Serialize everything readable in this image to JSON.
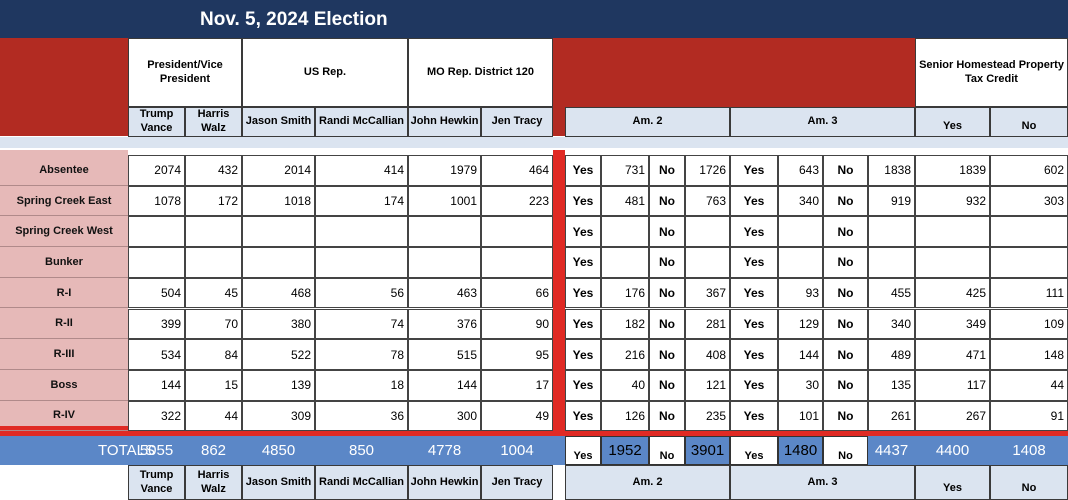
{
  "title": "Nov. 5, 2024 Election",
  "headers": {
    "president": "President/Vice President",
    "us_rep": "US Rep.",
    "mo_rep": "MO Rep. District 120",
    "senior": "Senior Homestead Property Tax Credit",
    "candidates": [
      "Trump Vance",
      "Harris Walz",
      "Jason Smith",
      "Randi McCallian",
      "John Hewkin",
      "Jen Tracy"
    ],
    "am2": "Am. 2",
    "am3": "Am. 3",
    "yes": "Yes",
    "no": "No"
  },
  "rows": [
    {
      "name": "Absentee",
      "v": [
        "2074",
        "432",
        "2014",
        "414",
        "1979",
        "464"
      ],
      "am2": [
        "731",
        "1726"
      ],
      "am3": [
        "643",
        "1838"
      ],
      "senior": [
        "1839",
        "602"
      ]
    },
    {
      "name": "Spring Creek East",
      "v": [
        "1078",
        "172",
        "1018",
        "174",
        "1001",
        "223"
      ],
      "am2": [
        "481",
        "763"
      ],
      "am3": [
        "340",
        "919"
      ],
      "senior": [
        "932",
        "303"
      ]
    },
    {
      "name": "Spring Creek West",
      "v": [
        "",
        "",
        "",
        "",
        "",
        ""
      ],
      "am2": [
        "",
        ""
      ],
      "am3": [
        "",
        ""
      ],
      "senior": [
        "",
        ""
      ]
    },
    {
      "name": "Bunker",
      "v": [
        "",
        "",
        "",
        "",
        "",
        ""
      ],
      "am2": [
        "",
        ""
      ],
      "am3": [
        "",
        ""
      ],
      "senior": [
        "",
        ""
      ]
    },
    {
      "name": "R-I",
      "v": [
        "504",
        "45",
        "468",
        "56",
        "463",
        "66"
      ],
      "am2": [
        "176",
        "367"
      ],
      "am3": [
        "93",
        "455"
      ],
      "senior": [
        "425",
        "111"
      ]
    },
    {
      "name": "R-II",
      "v": [
        "399",
        "70",
        "380",
        "74",
        "376",
        "90"
      ],
      "am2": [
        "182",
        "281"
      ],
      "am3": [
        "129",
        "340"
      ],
      "senior": [
        "349",
        "109"
      ]
    },
    {
      "name": "R-III",
      "v": [
        "534",
        "84",
        "522",
        "78",
        "515",
        "95"
      ],
      "am2": [
        "216",
        "408"
      ],
      "am3": [
        "144",
        "489"
      ],
      "senior": [
        "471",
        "148"
      ]
    },
    {
      "name": "Boss",
      "v": [
        "144",
        "15",
        "139",
        "18",
        "144",
        "17"
      ],
      "am2": [
        "40",
        "121"
      ],
      "am3": [
        "30",
        "135"
      ],
      "senior": [
        "117",
        "44"
      ]
    },
    {
      "name": "R-IV",
      "v": [
        "322",
        "44",
        "309",
        "36",
        "300",
        "49"
      ],
      "am2": [
        "126",
        "235"
      ],
      "am3": [
        "101",
        "261"
      ],
      "senior": [
        "267",
        "91"
      ]
    }
  ],
  "totals": {
    "label": "TOTALS",
    "v": [
      "5055",
      "862",
      "4850",
      "850",
      "4778",
      "1004"
    ],
    "am2": [
      "1952",
      "3901"
    ],
    "am3": [
      "1480",
      "4437"
    ],
    "senior": [
      "4400",
      "1408"
    ]
  },
  "colors": {
    "title_bar": "#1f3760",
    "red": "#b22b22",
    "bright_red": "#e02a24",
    "pink": "#e6b9b8",
    "light_blue": "#dbe4f0",
    "totals_blue": "#5b87c7"
  }
}
